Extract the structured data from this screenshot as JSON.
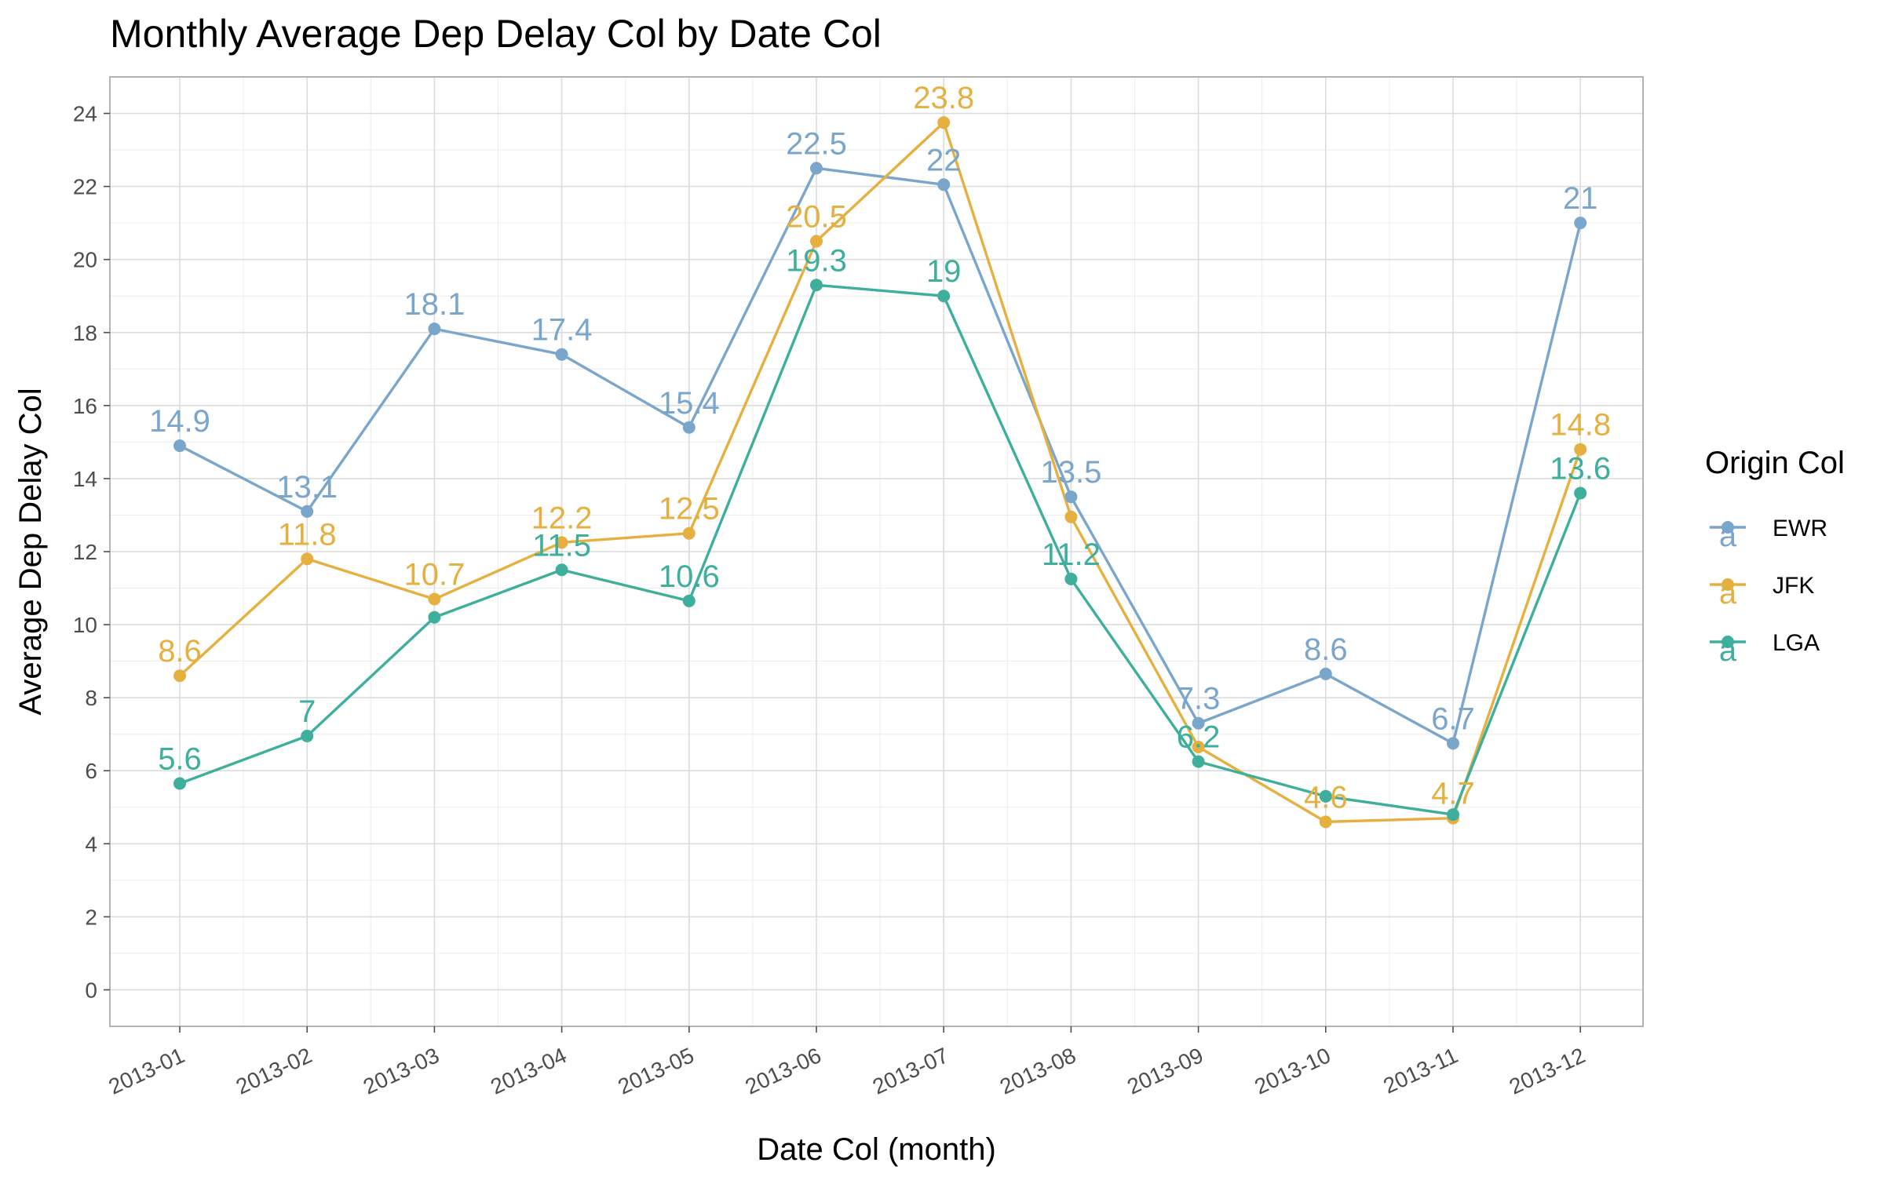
{
  "chart_data": {
    "type": "line",
    "title": "Monthly Average Dep Delay Col by Date Col",
    "xlabel": "Date Col (month)",
    "ylabel": "Average Dep Delay Col",
    "categories": [
      "2013-01",
      "2013-02",
      "2013-03",
      "2013-04",
      "2013-05",
      "2013-06",
      "2013-07",
      "2013-08",
      "2013-09",
      "2013-10",
      "2013-11",
      "2013-12"
    ],
    "ylim": [
      -1,
      25
    ],
    "yticks": [
      0,
      2,
      4,
      6,
      8,
      10,
      12,
      14,
      16,
      18,
      20,
      22,
      24
    ],
    "ytick_labels": [
      "0",
      "2",
      "4",
      "6",
      "8",
      "10",
      "12",
      "14",
      "16",
      "18",
      "20",
      "22",
      "24"
    ],
    "grid": true,
    "legend": {
      "title": "Origin Col",
      "position": "right",
      "key_glyph": "a"
    },
    "series": [
      {
        "name": "EWR",
        "color": "#7aa6cb",
        "values": [
          14.9,
          13.1,
          18.1,
          17.4,
          15.4,
          22.5,
          22.05,
          13.5,
          7.3,
          8.65,
          6.75,
          21.0
        ],
        "labels": [
          "14.9",
          "13.1",
          "18.1",
          "17.4",
          "15.4",
          "22.5",
          "22",
          "13.5",
          "7.3",
          "8.6",
          "6.7",
          "21"
        ]
      },
      {
        "name": "JFK",
        "color": "#e6b040",
        "values": [
          8.6,
          11.8,
          10.7,
          12.25,
          12.5,
          20.5,
          23.75,
          12.95,
          6.65,
          4.6,
          4.7,
          14.8
        ],
        "labels": [
          "8.6",
          "11.8",
          "10.7",
          "12.2",
          "12.5",
          "20.5",
          "23.8",
          "",
          "",
          "4.6",
          "4.7",
          "14.8"
        ]
      },
      {
        "name": "LGA",
        "color": "#3daf9c",
        "values": [
          5.65,
          6.95,
          10.2,
          11.5,
          10.65,
          19.3,
          19.0,
          11.25,
          6.25,
          5.3,
          4.8,
          13.6
        ],
        "labels": [
          "5.6",
          "7",
          "",
          "11.5",
          "10.6",
          "19.3",
          "19",
          "11.2",
          "6.2",
          "",
          "",
          "13.6"
        ]
      }
    ]
  }
}
